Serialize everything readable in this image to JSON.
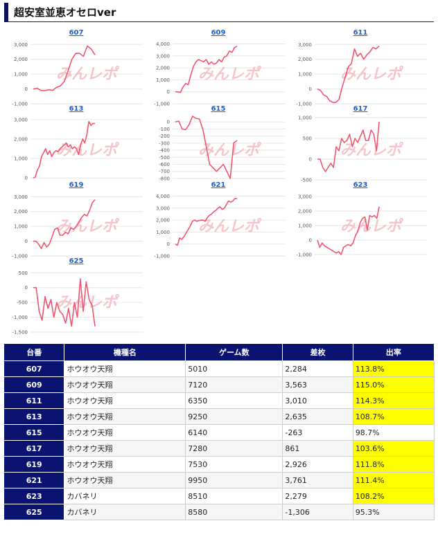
{
  "page": {
    "title": "超安室並恵オセロver",
    "watermark": "みんレポ"
  },
  "chart_data": [
    {
      "type": "line",
      "title": "607",
      "color": "#f0556e",
      "yticks": [
        3000,
        2000,
        1000,
        0,
        -1000
      ],
      "ylim": [
        -1000,
        3200
      ],
      "values": [
        0,
        50,
        -100,
        -120,
        -50,
        -100,
        100,
        200,
        500,
        1200,
        2000,
        2400,
        2400,
        2200,
        2900,
        2700,
        2300
      ]
    },
    {
      "type": "line",
      "title": "609",
      "color": "#f0556e",
      "yticks": [
        4000,
        3000,
        2000,
        1000,
        0,
        -1000
      ],
      "ylim": [
        -1000,
        4200
      ],
      "values": [
        0,
        0,
        -50,
        400,
        700,
        600,
        1400,
        2100,
        2500,
        2700,
        2600,
        2500,
        2700,
        2300,
        2500,
        2300,
        2400,
        2700,
        2500,
        2900,
        3000,
        3400,
        3300,
        3700,
        3800
      ]
    },
    {
      "type": "line",
      "title": "611",
      "color": "#f0556e",
      "yticks": [
        3000,
        2000,
        1000,
        0,
        -1000
      ],
      "ylim": [
        -1000,
        3200
      ],
      "values": [
        0,
        -100,
        -400,
        -500,
        -800,
        -900,
        -900,
        -700,
        100,
        800,
        1500,
        1700,
        2700,
        2200,
        2400,
        2000,
        2300,
        2500,
        2800,
        2700,
        2900
      ]
    },
    {
      "type": "line",
      "title": "613",
      "color": "#f0556e",
      "yticks": [
        3000,
        2000,
        1000,
        0
      ],
      "ylim": [
        -100,
        3100
      ],
      "values": [
        0,
        50,
        400,
        600,
        1100,
        1300,
        1500,
        1200,
        1400,
        1100,
        1300,
        1400,
        1350,
        1500,
        1600,
        1700,
        1800,
        1600,
        1700,
        1500,
        1600,
        1500,
        1200,
        1700,
        2000,
        1800,
        2200,
        2900,
        2700,
        2800,
        2800
      ]
    },
    {
      "type": "line",
      "title": "615",
      "color": "#f0556e",
      "yticks": [
        0,
        -100,
        -200,
        -300,
        -400,
        -500,
        -600,
        -700,
        -800
      ],
      "ylim": [
        -820,
        60
      ],
      "values": [
        0,
        10,
        -100,
        -110,
        -40,
        80,
        50,
        40,
        -100,
        -350,
        -600,
        -650,
        -700,
        -650,
        -600,
        -700,
        -800,
        -300,
        -263
      ]
    },
    {
      "type": "line",
      "title": "617",
      "color": "#f0556e",
      "yticks": [
        1000,
        500,
        0,
        -500
      ],
      "ylim": [
        -500,
        1000
      ],
      "values": [
        0,
        0,
        -200,
        -300,
        -200,
        -100,
        -200,
        300,
        200,
        500,
        400,
        450,
        600,
        300,
        500,
        400,
        550,
        700,
        450,
        450,
        700,
        600,
        200,
        900
      ]
    },
    {
      "type": "line",
      "title": "619",
      "color": "#f0556e",
      "yticks": [
        3000,
        2000,
        1000,
        0,
        -1000
      ],
      "ylim": [
        -1000,
        3200
      ],
      "values": [
        0,
        0,
        -200,
        -500,
        -100,
        -400,
        -200,
        300,
        800,
        900,
        400,
        400,
        600,
        500,
        900,
        800,
        1000,
        1300,
        1600,
        1800,
        1700,
        2100,
        2600,
        2800
      ]
    },
    {
      "type": "line",
      "title": "621",
      "color": "#f0556e",
      "yticks": [
        4000,
        3000,
        2000,
        1000,
        0,
        -1000
      ],
      "ylim": [
        -1000,
        4200
      ],
      "values": [
        0,
        -100,
        500,
        400,
        600,
        900,
        1200,
        1500,
        1900,
        2000,
        1900,
        1950,
        2000,
        2000,
        1900,
        2200,
        2400,
        2500,
        2700,
        2800,
        3000,
        3100,
        2900,
        3000,
        3300,
        3600,
        3500,
        3600,
        3800,
        3800
      ]
    },
    {
      "type": "line",
      "title": "623",
      "color": "#f0556e",
      "yticks": [
        3000,
        2000,
        1000,
        0,
        -1000
      ],
      "ylim": [
        -1100,
        3200
      ],
      "values": [
        0,
        -500,
        -200,
        -400,
        -500,
        -600,
        -700,
        -800,
        -900,
        -800,
        -1000,
        -500,
        -400,
        -300,
        -400,
        -200,
        300,
        600,
        1200,
        1500,
        1600,
        700,
        1700,
        1600,
        1700,
        1500,
        2300
      ]
    },
    {
      "type": "line",
      "title": "625",
      "color": "#f0556e",
      "yticks": [
        500,
        0,
        -500,
        -1000,
        -1500
      ],
      "ylim": [
        -1500,
        600
      ],
      "values": [
        0,
        0,
        -800,
        -1100,
        -300,
        -700,
        -400,
        -1000,
        -500,
        -800,
        -900,
        -1200,
        -700,
        -1300,
        -500,
        -1000,
        300,
        -800,
        200,
        -400,
        -600,
        -1306
      ]
    }
  ],
  "table": {
    "headers": [
      "台番",
      "機種名",
      "ゲーム数",
      "差枚",
      "出率"
    ],
    "rows": [
      {
        "no": "607",
        "model": "ホウオウ天翔",
        "games": "5010",
        "diff": "2,284",
        "rate": "113.8%",
        "neg": false,
        "hl": true
      },
      {
        "no": "609",
        "model": "ホウオウ天翔",
        "games": "7120",
        "diff": "3,563",
        "rate": "115.0%",
        "neg": false,
        "hl": true
      },
      {
        "no": "611",
        "model": "ホウオウ天翔",
        "games": "6350",
        "diff": "3,010",
        "rate": "114.3%",
        "neg": false,
        "hl": true
      },
      {
        "no": "613",
        "model": "ホウオウ天翔",
        "games": "9250",
        "diff": "2,635",
        "rate": "108.7%",
        "neg": false,
        "hl": true
      },
      {
        "no": "615",
        "model": "ホウオウ天翔",
        "games": "6140",
        "diff": "-263",
        "rate": "98.7%",
        "neg": true,
        "hl": false
      },
      {
        "no": "617",
        "model": "ホウオウ天翔",
        "games": "7280",
        "diff": "861",
        "rate": "103.6%",
        "neg": false,
        "hl": true
      },
      {
        "no": "619",
        "model": "ホウオウ天翔",
        "games": "7530",
        "diff": "2,926",
        "rate": "111.8%",
        "neg": false,
        "hl": true
      },
      {
        "no": "621",
        "model": "ホウオウ天翔",
        "games": "9950",
        "diff": "3,761",
        "rate": "111.4%",
        "neg": false,
        "hl": true
      },
      {
        "no": "623",
        "model": "カバネリ",
        "games": "8510",
        "diff": "2,279",
        "rate": "108.2%",
        "neg": false,
        "hl": true
      },
      {
        "no": "625",
        "model": "カバネリ",
        "games": "8580",
        "diff": "-1,306",
        "rate": "95.3%",
        "neg": true,
        "hl": false
      }
    ]
  }
}
